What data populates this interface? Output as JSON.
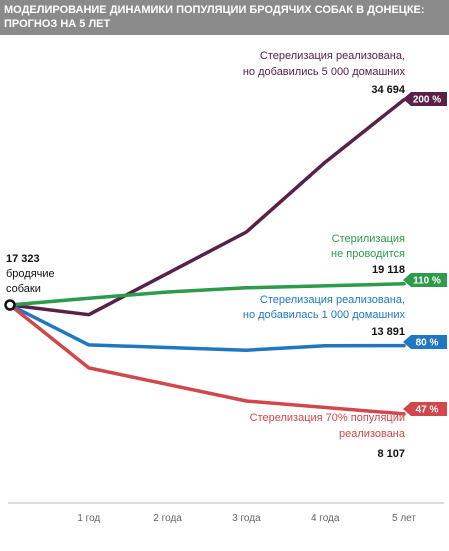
{
  "title": {
    "line1": "МОДЕЛИРОВАНИЕ ДИНАМИКИ ПОПУЛЯЦИИ БРОДЯЧИХ СОБАК В ДОНЕЦКЕ:",
    "line2": "ПРОГНОЗ НА 5 ЛЕТ"
  },
  "start_label": [
    "17 323",
    "бродячие",
    "собаки"
  ],
  "chart_data": {
    "type": "line",
    "title": "МОДЕЛИРОВАНИЕ ДИНАМИКИ ПОПУЛЯЦИИ БРОДЯЧИХ СОБАК В ДОНЕЦКЕ: ПРОГНОЗ НА 5 ЛЕТ",
    "x": [
      0,
      1,
      2,
      3,
      4,
      5
    ],
    "tick_labels": [
      "1 год",
      "2 года",
      "3 года",
      "4 года",
      "5 лет"
    ],
    "xlabel": "",
    "ylabel": "",
    "ylim": [
      0,
      40000
    ],
    "grid": false,
    "start_value": 17323,
    "series": [
      {
        "label_lines": [
          "Стерелизация реализована,",
          "но добавились 5 000 домашних"
        ],
        "color": "#5a2148",
        "values": [
          17323,
          16500,
          23500,
          29400,
          34694
        ],
        "x": [
          0,
          1,
          3,
          4,
          5
        ],
        "final_label": "34 694",
        "badge": "200 %"
      },
      {
        "label_lines": [
          "Стерилизация",
          "не проводится"
        ],
        "color": "#2e9a4b",
        "values": [
          17323,
          17900,
          18420,
          18780,
          19118
        ],
        "x": [
          0,
          1,
          2,
          3,
          5
        ],
        "final_label": "19 118",
        "badge": "110 %"
      },
      {
        "label_lines": [
          "Стерелизация реализована,",
          "но добавилась 1 000 домашних"
        ],
        "color": "#1f77c2",
        "values": [
          17323,
          13950,
          13500,
          13880,
          13891
        ],
        "x": [
          0,
          1,
          3,
          4,
          5
        ],
        "final_label": "13 891",
        "badge": "80 %"
      },
      {
        "label_lines": [
          "Стерелизация 70% популяции",
          "реализована"
        ],
        "color": "#d2474c",
        "values": [
          17323,
          12000,
          9200,
          8107
        ],
        "x": [
          0,
          1,
          3,
          5
        ],
        "final_label": "8 107",
        "badge": "47 %"
      }
    ]
  }
}
